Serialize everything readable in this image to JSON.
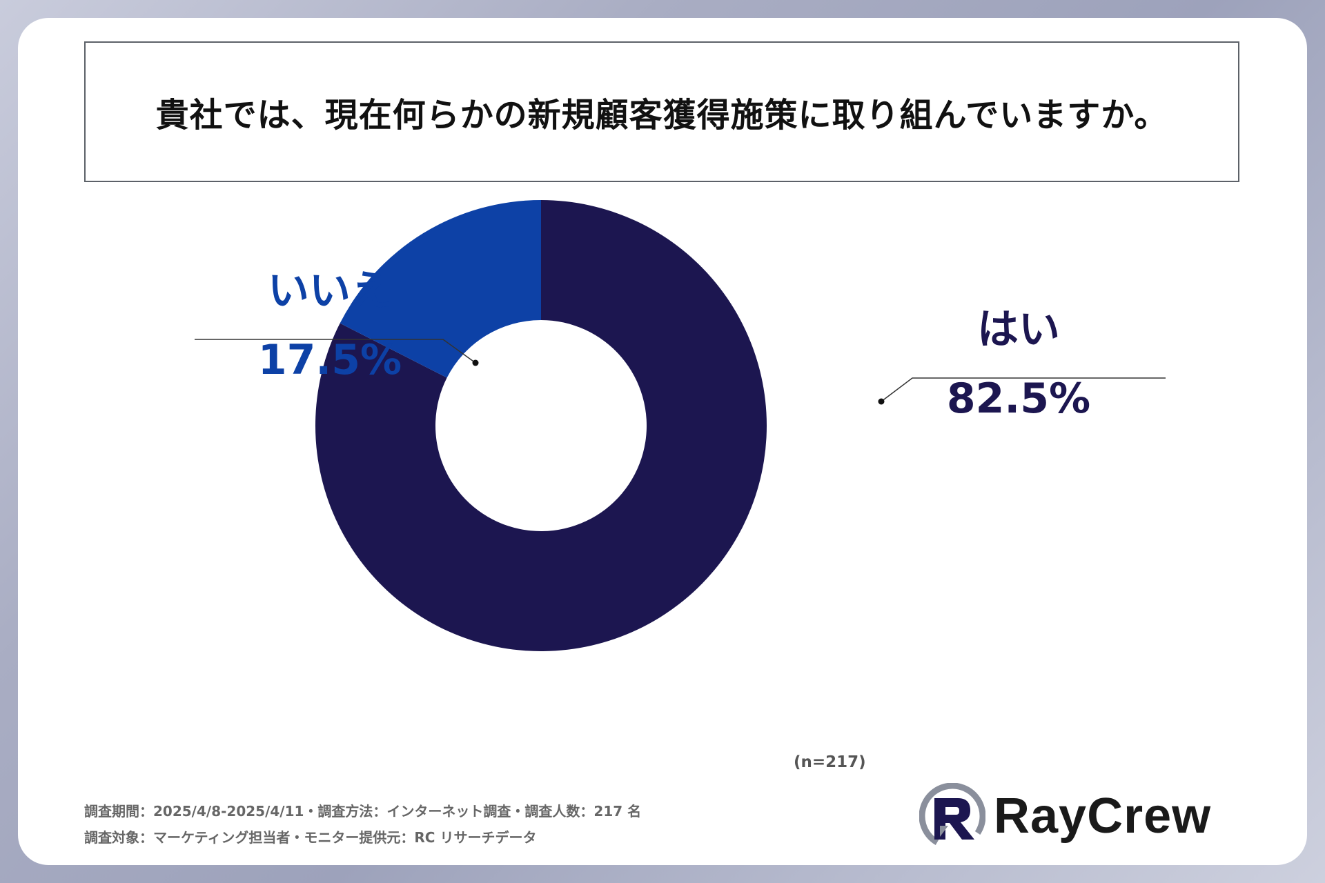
{
  "title": "貴社では、現在何らかの新規顧客獲得施策に取り組んでいますか。",
  "chart_data": {
    "type": "pie",
    "donut": true,
    "categories": [
      "はい",
      "いいえ"
    ],
    "values": [
      82.5,
      17.5
    ],
    "labels": [
      "82.5%",
      "17.5%"
    ],
    "colors": [
      "#1c1650",
      "#0d41a6"
    ],
    "label_colors": [
      "#1c1650",
      "#0d41a6"
    ],
    "start": "12 o'clock",
    "direction": "clockwise"
  },
  "sample_size": "(n=217)",
  "footnotes": {
    "line1": "調査期間：2025/4/8-2025/4/11・調査方法：インターネット調査・調査人数：217 名",
    "line2": "調査対象：マーケティング担当者・モニター提供元：RC リサーチデータ"
  },
  "logo": {
    "text": "RayCrew",
    "colors": [
      "#1c1650",
      "#8a8f9c"
    ]
  }
}
